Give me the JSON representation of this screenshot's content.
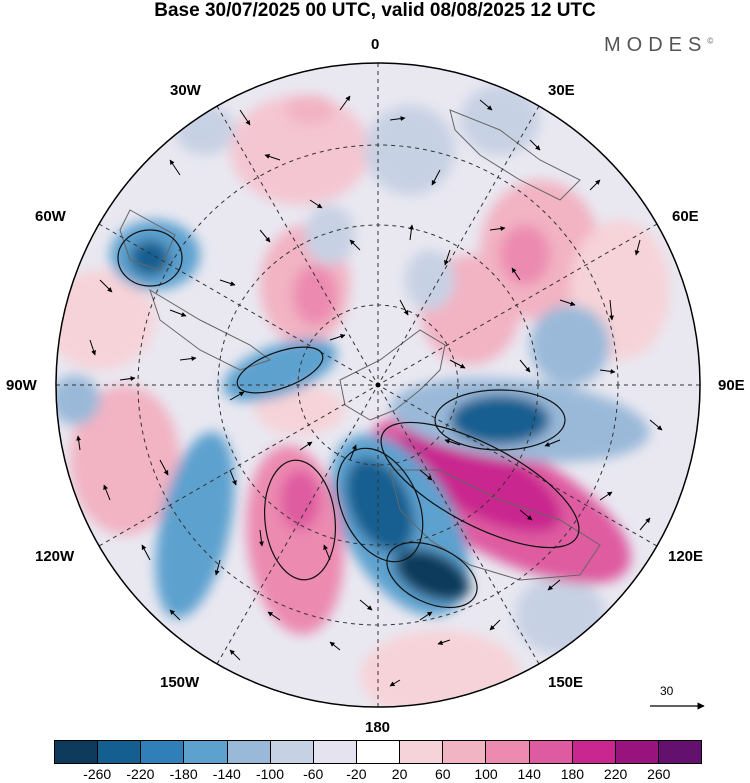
{
  "title": "Base 30/07/2025 00 UTC, valid 08/08/2025 12 UTC",
  "brand": {
    "name": "MODES",
    "mark": "©"
  },
  "longitude_labels": {
    "lon_0": "0",
    "lon_30e": "30E",
    "lon_60e": "60E",
    "lon_90e": "90E",
    "lon_120e": "120E",
    "lon_150e": "150E",
    "lon_180": "180",
    "lon_150w": "150W",
    "lon_120w": "120W",
    "lon_90w": "90W",
    "lon_60w": "60W",
    "lon_30w": "30W"
  },
  "reference_vector": {
    "label": "30"
  },
  "colorbar": {
    "colors": [
      "#0e3a5c",
      "#155f90",
      "#2f80b9",
      "#5da1cf",
      "#9ab9d9",
      "#c7d1e4",
      "#e4e3ef",
      "#ffffff",
      "#f6d3d8",
      "#f2b3c3",
      "#ec8ab0",
      "#df5ba1",
      "#c9278f",
      "#99137f",
      "#63106e"
    ],
    "tick_labels": [
      "-260",
      "-220",
      "-180",
      "-140",
      "-100",
      "-60",
      "-20",
      "20",
      "60",
      "100",
      "140",
      "180",
      "220",
      "260"
    ]
  }
}
